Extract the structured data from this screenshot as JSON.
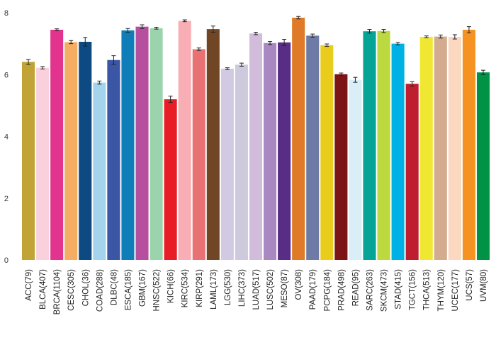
{
  "chart_data": {
    "type": "bar",
    "title": "",
    "xlabel": "",
    "ylabel": "",
    "ylim": [
      0,
      8
    ],
    "yticks": [
      0,
      2,
      4,
      6,
      8
    ],
    "grid": false,
    "legend": "none",
    "categories": [
      "ACC(79)",
      "BLCA(407)",
      "BRCA(1104)",
      "CESC(305)",
      "CHOL(36)",
      "COAD(288)",
      "DLBC(48)",
      "ESCA(185)",
      "GBM(167)",
      "HNSC(522)",
      "KICH(66)",
      "KIRC(534)",
      "KIRP(291)",
      "LAML(173)",
      "LGG(530)",
      "LIHC(373)",
      "LUAD(517)",
      "LUSC(502)",
      "MESO(87)",
      "OV(308)",
      "PAAD(179)",
      "PCPG(184)",
      "PRAD(498)",
      "READ(95)",
      "SARC(263)",
      "SKCM(473)",
      "STAD(415)",
      "TGCT(156)",
      "THCA(513)",
      "THYM(120)",
      "UCEC(177)",
      "UCS(57)",
      "UVM(80)"
    ],
    "values": [
      6.41,
      6.22,
      7.45,
      7.05,
      7.06,
      5.74,
      6.47,
      7.43,
      7.55,
      7.5,
      5.2,
      7.74,
      6.82,
      7.47,
      6.19,
      6.32,
      7.33,
      7.02,
      7.04,
      7.84,
      7.26,
      6.95,
      6.01,
      5.83,
      7.4,
      7.41,
      7.0,
      5.7,
      7.22,
      7.23,
      7.22,
      7.45,
      6.07
    ],
    "errors": [
      0.08,
      0.04,
      0.03,
      0.05,
      0.14,
      0.05,
      0.14,
      0.06,
      0.06,
      0.03,
      0.1,
      0.03,
      0.04,
      0.1,
      0.03,
      0.05,
      0.04,
      0.05,
      0.1,
      0.04,
      0.05,
      0.04,
      0.04,
      0.08,
      0.06,
      0.05,
      0.04,
      0.07,
      0.03,
      0.05,
      0.07,
      0.1,
      0.07
    ],
    "colors": [
      "#c1a435",
      "#f9d1dd",
      "#e2338e",
      "#f4ad63",
      "#0d4a82",
      "#a4d3ee",
      "#3a56a5",
      "#0f7db8",
      "#b74f9f",
      "#9bd3ac",
      "#e81e26",
      "#f8aeb4",
      "#e87173",
      "#714625",
      "#d2c9e3",
      "#cccadc",
      "#d2bcdc",
      "#a987c0",
      "#592d86",
      "#df7b28",
      "#6d7ba6",
      "#e9cc1c",
      "#7c1416",
      "#daeef8",
      "#05a497",
      "#bcd940",
      "#00b1e5",
      "#bf1e2e",
      "#f0e732",
      "#d3ab8f",
      "#fbd8bf",
      "#f59221",
      "#009346"
    ]
  }
}
